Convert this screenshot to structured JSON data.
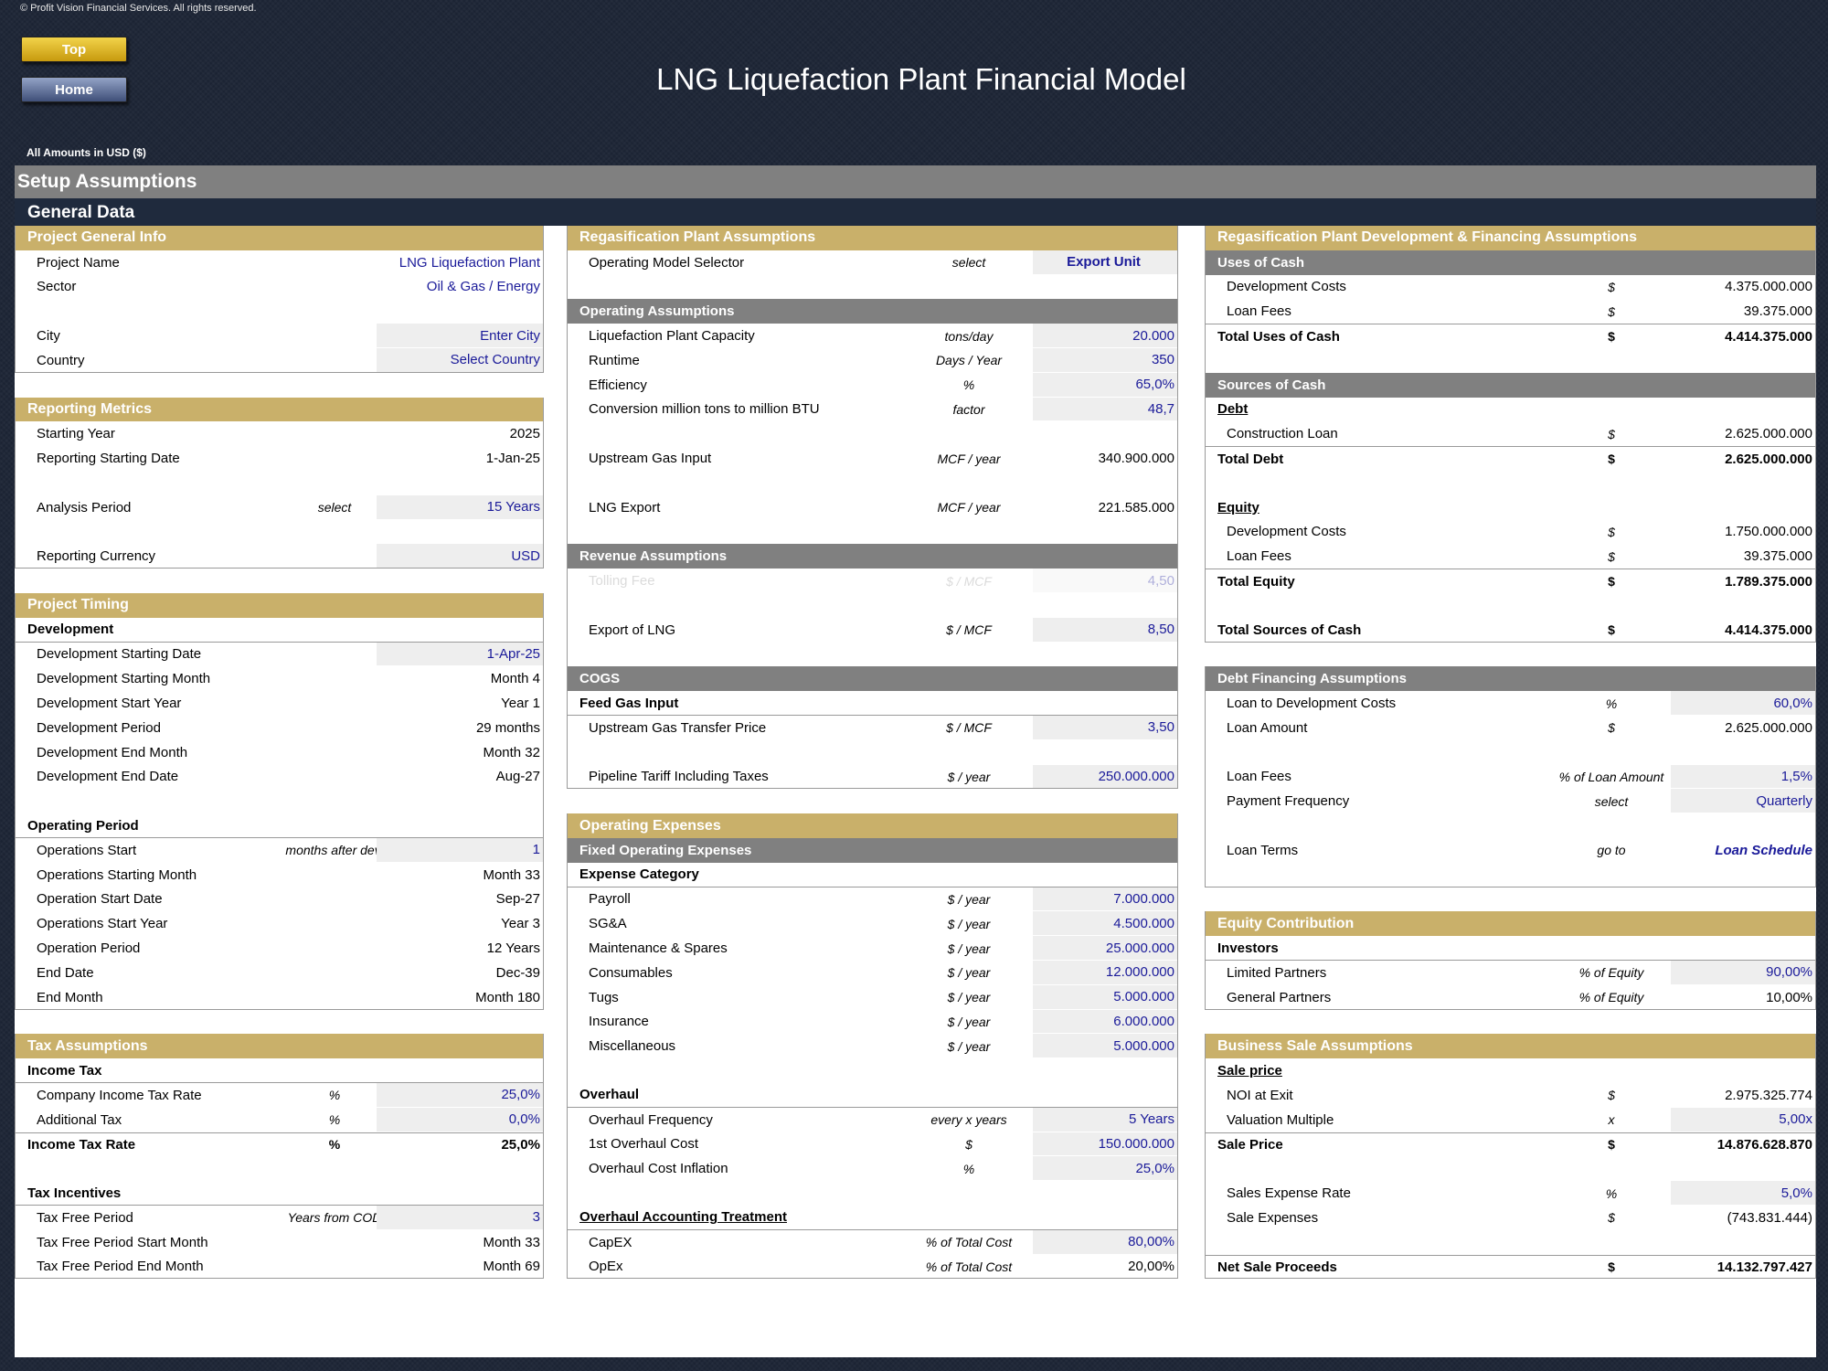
{
  "copyright": "© Profit Vision Financial Services. All rights reserved.",
  "nav": {
    "top": "Top",
    "home": "Home"
  },
  "title": "LNG Liquefaction Plant Financial Model",
  "amounts_label": "All Amounts in  USD ($)",
  "setup_header": "Setup Assumptions",
  "general_header": "General Data",
  "col1": {
    "project_general": {
      "header": "Project General Info",
      "project_name": {
        "label": "Project Name",
        "value": "LNG Liquefaction Plant"
      },
      "sector": {
        "label": "Sector",
        "value": "Oil & Gas / Energy"
      },
      "city": {
        "label": "City",
        "value": "Enter City"
      },
      "country": {
        "label": "Country",
        "value": "Select Country"
      }
    },
    "reporting": {
      "header": "Reporting Metrics",
      "starting_year": {
        "label": "Starting Year",
        "value": "2025"
      },
      "reporting_date": {
        "label": "Reporting Starting Date",
        "value": "1-Jan-25"
      },
      "analysis_period": {
        "label": "Analysis Period",
        "unit": "select",
        "value": "15 Years"
      },
      "currency": {
        "label": "Reporting Currency",
        "value": "USD"
      }
    },
    "timing": {
      "header": "Project Timing",
      "development_title": "Development",
      "development": [
        {
          "label": "Development Starting Date",
          "value": "1-Apr-25",
          "input": true
        },
        {
          "label": "Development Starting Month",
          "value": "Month 4"
        },
        {
          "label": "Development Start Year",
          "value": "Year 1"
        },
        {
          "label": "Development Period",
          "value": "29 months"
        },
        {
          "label": "Development End Month",
          "value": "Month 32"
        },
        {
          "label": "Development End Date",
          "value": "Aug-27"
        }
      ],
      "operating_title": "Operating Period",
      "operations_start": {
        "label": "Operations Start",
        "unit": "months after dev.",
        "value": "1"
      },
      "operating": [
        {
          "label": "Operations Starting Month",
          "value": "Month 33"
        },
        {
          "label": "Operation Start Date",
          "value": "Sep-27"
        },
        {
          "label": "Operations Start Year",
          "value": "Year 3"
        },
        {
          "label": "Operation Period",
          "value": "12 Years"
        },
        {
          "label": "End Date",
          "value": "Dec-39"
        },
        {
          "label": "End Month",
          "value": "Month 180"
        }
      ]
    },
    "tax": {
      "header": "Tax Assumptions",
      "income_tax_title": "Income Tax",
      "company_rate": {
        "label": "Company Income Tax Rate",
        "unit": "%",
        "value": "25,0%"
      },
      "additional_tax": {
        "label": "Additional Tax",
        "unit": "%",
        "value": "0,0%"
      },
      "income_tax_rate": {
        "label": "Income Tax Rate",
        "unit": "%",
        "value": "25,0%"
      },
      "incentives_title": "Tax Incentives",
      "tax_free_period": {
        "label": "Tax Free Period",
        "unit": "Years from COD",
        "value": "3"
      },
      "tax_free_start": {
        "label": "Tax Free Period Start Month",
        "value": "Month 33"
      },
      "tax_free_end": {
        "label": "Tax Free Period End Month",
        "value": "Month 69"
      }
    }
  },
  "col2": {
    "plant": {
      "header": "Regasification Plant Assumptions",
      "selector": {
        "label": "Operating Model Selector",
        "unit": "select",
        "value": "Export Unit"
      }
    },
    "operating": {
      "header": "Operating Assumptions",
      "rows": [
        {
          "label": "Liquefaction Plant Capacity",
          "unit": "tons/day",
          "value": "20.000"
        },
        {
          "label": "Runtime",
          "unit": "Days / Year",
          "value": "350"
        },
        {
          "label": "Efficiency",
          "unit": "%",
          "value": "65,0%"
        },
        {
          "label": "Conversion million tons to million BTU",
          "unit": "factor",
          "value": "48,7"
        }
      ],
      "upstream": {
        "label": "Upstream Gas Input",
        "unit": "MCF / year",
        "value": "340.900.000"
      },
      "lng_export": {
        "label": "LNG Export",
        "unit": "MCF / year",
        "value": "221.585.000"
      }
    },
    "revenue": {
      "header": "Revenue Assumptions",
      "tolling": {
        "label": "Tolling Fee",
        "unit": "$ / MCF",
        "value": "4,50"
      },
      "export": {
        "label": "Export of LNG",
        "unit": "$ / MCF",
        "value": "8,50"
      }
    },
    "cogs": {
      "header": "COGS",
      "feed_title": "Feed Gas Input",
      "transfer_price": {
        "label": "Upstream Gas Transfer Price",
        "unit": "$ / MCF",
        "value": "3,50"
      },
      "pipeline": {
        "label": "Pipeline Tariff Including Taxes",
        "unit": "$ / year",
        "value": "250.000.000"
      }
    },
    "opex": {
      "header": "Operating Expenses",
      "fixed_header": "Fixed Operating Expenses",
      "category_title": "Expense Category",
      "items": [
        {
          "label": "Payroll",
          "unit": "$ / year",
          "value": "7.000.000"
        },
        {
          "label": "SG&A",
          "unit": "$ / year",
          "value": "4.500.000"
        },
        {
          "label": "Maintenance & Spares",
          "unit": "$ / year",
          "value": "25.000.000"
        },
        {
          "label": "Consumables",
          "unit": "$ / year",
          "value": "12.000.000"
        },
        {
          "label": "Tugs",
          "unit": "$ / year",
          "value": "5.000.000"
        },
        {
          "label": "Insurance",
          "unit": "$ / year",
          "value": "6.000.000"
        },
        {
          "label": "Miscellaneous",
          "unit": "$ / year",
          "value": "5.000.000"
        }
      ],
      "overhaul_title": "Overhaul",
      "overhaul": [
        {
          "label": "Overhaul Frequency",
          "unit": "every x years",
          "value": "5 Years"
        },
        {
          "label": "1st Overhaul Cost",
          "unit": "$",
          "value": "150.000.000"
        },
        {
          "label": "Overhaul Cost Inflation",
          "unit": "%",
          "value": "25,0%"
        }
      ],
      "treatment_title": "Overhaul Accounting Treatment",
      "capex": {
        "label": "CapEX",
        "unit": "% of Total Cost",
        "value": "80,00%"
      },
      "opex_row": {
        "label": "OpEx",
        "unit": "% of Total Cost",
        "value": "20,00%"
      }
    }
  },
  "col3": {
    "dev_fin": {
      "header": "Regasification Plant Development & Financing Assumptions",
      "uses_header": "Uses of Cash",
      "uses": [
        {
          "label": "Development Costs",
          "unit": "$",
          "value": "4.375.000.000"
        },
        {
          "label": "Loan Fees",
          "unit": "$",
          "value": "39.375.000"
        }
      ],
      "total_uses": {
        "label": "Total Uses of Cash",
        "unit": "$",
        "value": "4.414.375.000"
      },
      "sources_header": "Sources of Cash",
      "debt_title": "Debt",
      "construction_loan": {
        "label": "Construction Loan",
        "unit": "$",
        "value": "2.625.000.000"
      },
      "total_debt": {
        "label": "Total Debt",
        "unit": "$",
        "value": "2.625.000.000"
      },
      "equity_title": "Equity",
      "equity_dev": {
        "label": "Development Costs",
        "unit": "$",
        "value": "1.750.000.000"
      },
      "equity_fees": {
        "label": "Loan Fees",
        "unit": "$",
        "value": "39.375.000"
      },
      "total_equity": {
        "label": "Total Equity",
        "unit": "$",
        "value": "1.789.375.000"
      },
      "total_sources": {
        "label": "Total Sources of Cash",
        "unit": "$",
        "value": "4.414.375.000"
      }
    },
    "debt": {
      "header": "Debt Financing Assumptions",
      "ltc": {
        "label": "Loan to Development Costs",
        "unit": "%",
        "value": "60,0%"
      },
      "amount": {
        "label": "Loan Amount",
        "unit": "$",
        "value": "2.625.000.000"
      },
      "fees": {
        "label": "Loan Fees",
        "unit": "% of Loan Amount",
        "value": "1,5%"
      },
      "frequency": {
        "label": "Payment Frequency",
        "unit": "select",
        "value": "Quarterly"
      },
      "terms": {
        "label": "Loan Terms",
        "unit": "go to",
        "value": "Loan Schedule"
      }
    },
    "equity": {
      "header": "Equity Contribution",
      "investors_title": "Investors",
      "lp": {
        "label": "Limited Partners",
        "unit": "% of Equity",
        "value": "90,00%"
      },
      "gp": {
        "label": "General Partners",
        "unit": "% of Equity",
        "value": "10,00%"
      }
    },
    "sale": {
      "header": "Business Sale Assumptions",
      "price_title": "Sale price",
      "noi": {
        "label": "NOI at Exit",
        "unit": "$",
        "value": "2.975.325.774"
      },
      "multiple": {
        "label": "Valuation Multiple",
        "unit": "x",
        "value": "5,00x"
      },
      "sale_price": {
        "label": "Sale Price",
        "unit": "$",
        "value": "14.876.628.870"
      },
      "expense_rate": {
        "label": "Sales Expense Rate",
        "unit": "%",
        "value": "5,0%"
      },
      "expenses": {
        "label": "Sale Expenses",
        "unit": "$",
        "value": "(743.831.444)"
      },
      "net": {
        "label": "Net Sale Proceeds",
        "unit": "$",
        "value": "14.132.797.427"
      }
    }
  }
}
